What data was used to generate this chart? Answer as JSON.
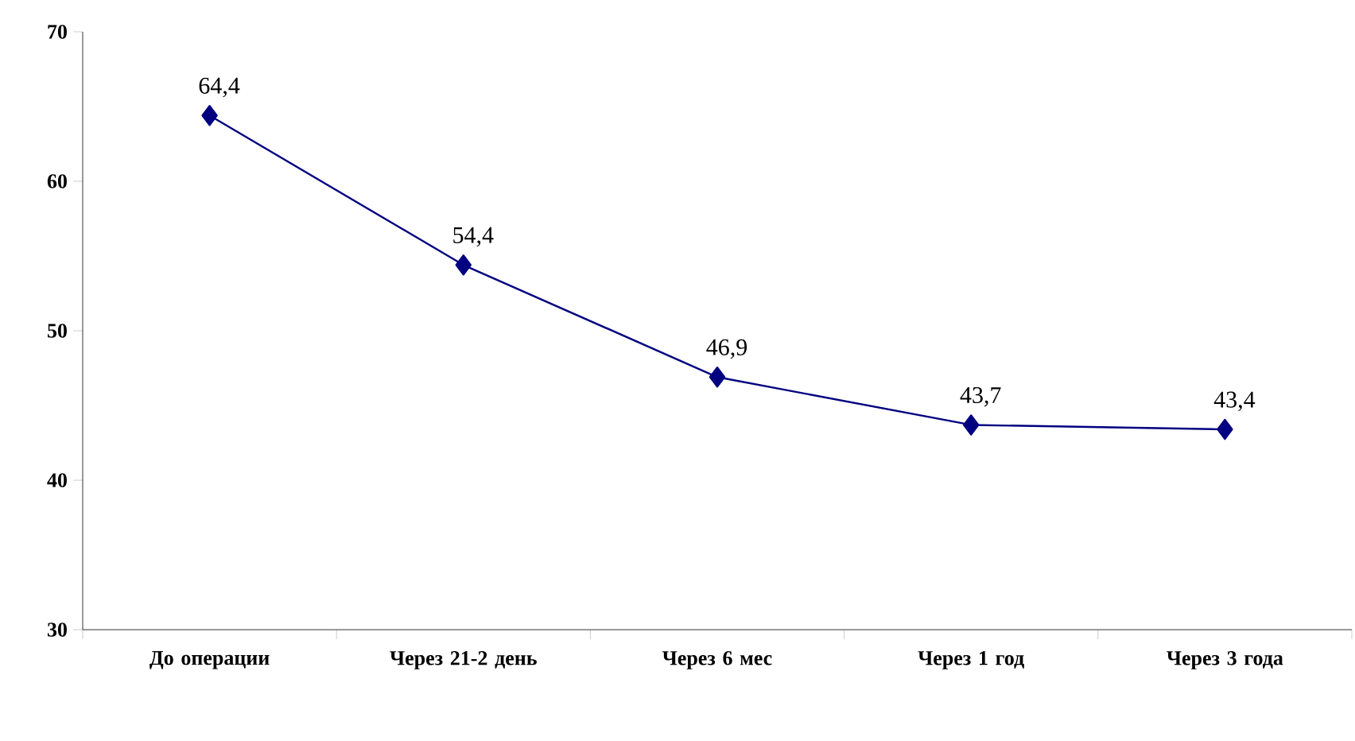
{
  "chart_data": {
    "type": "line",
    "categories": [
      "До операции",
      "Через 21-2 день",
      "Через 6 мес",
      "Через 1 год",
      "Через 3 года"
    ],
    "series": [
      {
        "color": "#000080",
        "values": [
          64.4,
          54.4,
          46.9,
          43.7,
          43.4
        ],
        "value_labels": [
          "64,4",
          "54,4",
          "46,9",
          "43,7",
          "43,4"
        ]
      }
    ],
    "ylim": [
      30,
      70
    ],
    "yticks": [
      30,
      40,
      50,
      60,
      70
    ],
    "marker": "diamond",
    "line_style": "solid"
  }
}
